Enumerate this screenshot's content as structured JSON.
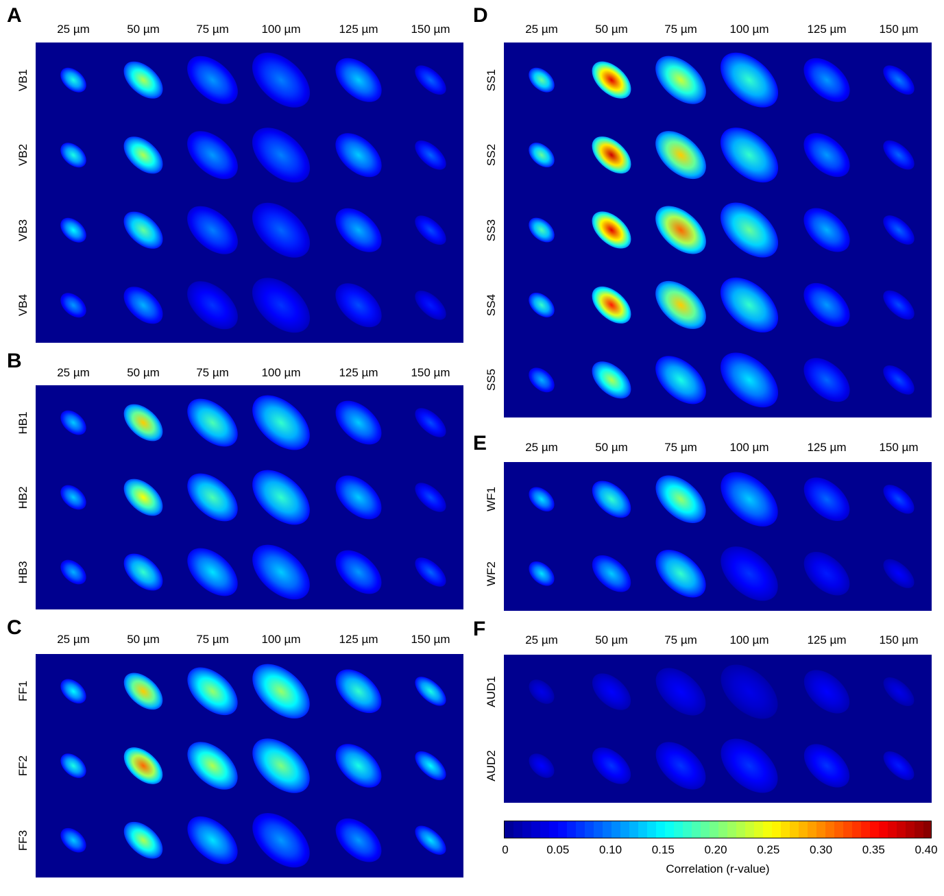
{
  "colors": {
    "background": "#00008f",
    "colormap": [
      "#00008f",
      "#0000ff",
      "#007fff",
      "#00ffff",
      "#7fff7f",
      "#ffff00",
      "#ff7f00",
      "#ff0000",
      "#7f0000"
    ]
  },
  "chart_data": [
    {
      "type": "heatmap",
      "panel": "A",
      "columns": [
        "25 µm",
        "50 µm",
        "75 µm",
        "100 µm",
        "125 µm",
        "150 µm"
      ],
      "rows": [
        "VB1",
        "VB2",
        "VB3",
        "VB4"
      ],
      "values": [
        [
          0.16,
          0.22,
          0.11,
          0.1,
          0.13,
          0.09
        ],
        [
          0.16,
          0.22,
          0.11,
          0.1,
          0.13,
          0.09
        ],
        [
          0.15,
          0.19,
          0.1,
          0.09,
          0.12,
          0.08
        ],
        [
          0.11,
          0.12,
          0.07,
          0.07,
          0.08,
          0.06
        ]
      ]
    },
    {
      "type": "heatmap",
      "panel": "B",
      "columns": [
        "25 µm",
        "50 µm",
        "75 µm",
        "100 µm",
        "125 µm",
        "150 µm"
      ],
      "rows": [
        "HB1",
        "HB2",
        "HB3"
      ],
      "values": [
        [
          0.13,
          0.27,
          0.18,
          0.17,
          0.13,
          0.08
        ],
        [
          0.13,
          0.25,
          0.18,
          0.17,
          0.13,
          0.08
        ],
        [
          0.12,
          0.17,
          0.14,
          0.13,
          0.11,
          0.09
        ]
      ]
    },
    {
      "type": "heatmap",
      "panel": "C",
      "columns": [
        "25 µm",
        "50 µm",
        "75 µm",
        "100 µm",
        "125 µm",
        "150 µm"
      ],
      "rows": [
        "FF1",
        "FF2",
        "FF3"
      ],
      "values": [
        [
          0.15,
          0.27,
          0.21,
          0.21,
          0.17,
          0.16
        ],
        [
          0.16,
          0.31,
          0.22,
          0.2,
          0.16,
          0.15
        ],
        [
          0.13,
          0.22,
          0.14,
          0.11,
          0.11,
          0.14
        ]
      ]
    },
    {
      "type": "heatmap",
      "panel": "D",
      "columns": [
        "25 µm",
        "50 µm",
        "75 µm",
        "100 µm",
        "125 µm",
        "150 µm"
      ],
      "rows": [
        "SS1",
        "SS2",
        "SS3",
        "SS4",
        "SS5"
      ],
      "values": [
        [
          0.19,
          0.36,
          0.23,
          0.17,
          0.11,
          0.1
        ],
        [
          0.19,
          0.37,
          0.27,
          0.17,
          0.11,
          0.09
        ],
        [
          0.18,
          0.36,
          0.31,
          0.19,
          0.12,
          0.09
        ],
        [
          0.17,
          0.34,
          0.27,
          0.17,
          0.11,
          0.08
        ],
        [
          0.12,
          0.22,
          0.16,
          0.14,
          0.09,
          0.08
        ]
      ]
    },
    {
      "type": "heatmap",
      "panel": "E",
      "columns": [
        "25 µm",
        "50 µm",
        "75 µm",
        "100 µm",
        "125 µm",
        "150 µm"
      ],
      "rows": [
        "WF1",
        "WF2"
      ],
      "values": [
        [
          0.14,
          0.17,
          0.21,
          0.13,
          0.09,
          0.08
        ],
        [
          0.14,
          0.13,
          0.17,
          0.07,
          0.06,
          0.05
        ]
      ]
    },
    {
      "type": "heatmap",
      "panel": "F",
      "columns": [
        "25 µm",
        "50 µm",
        "75 µm",
        "100 µm",
        "125 µm",
        "150 µm"
      ],
      "rows": [
        "AUD1",
        "AUD2"
      ],
      "values": [
        [
          0.04,
          0.05,
          0.05,
          0.04,
          0.05,
          0.04
        ],
        [
          0.05,
          0.07,
          0.07,
          0.07,
          0.07,
          0.06
        ]
      ]
    }
  ],
  "colorbar": {
    "title": "Correlation (r-value)",
    "range": [
      0,
      0.4
    ],
    "ticks": [
      "0",
      "0.05",
      "0.10",
      "0.15",
      "0.20",
      "0.25",
      "0.30",
      "0.35",
      "0.40"
    ]
  }
}
